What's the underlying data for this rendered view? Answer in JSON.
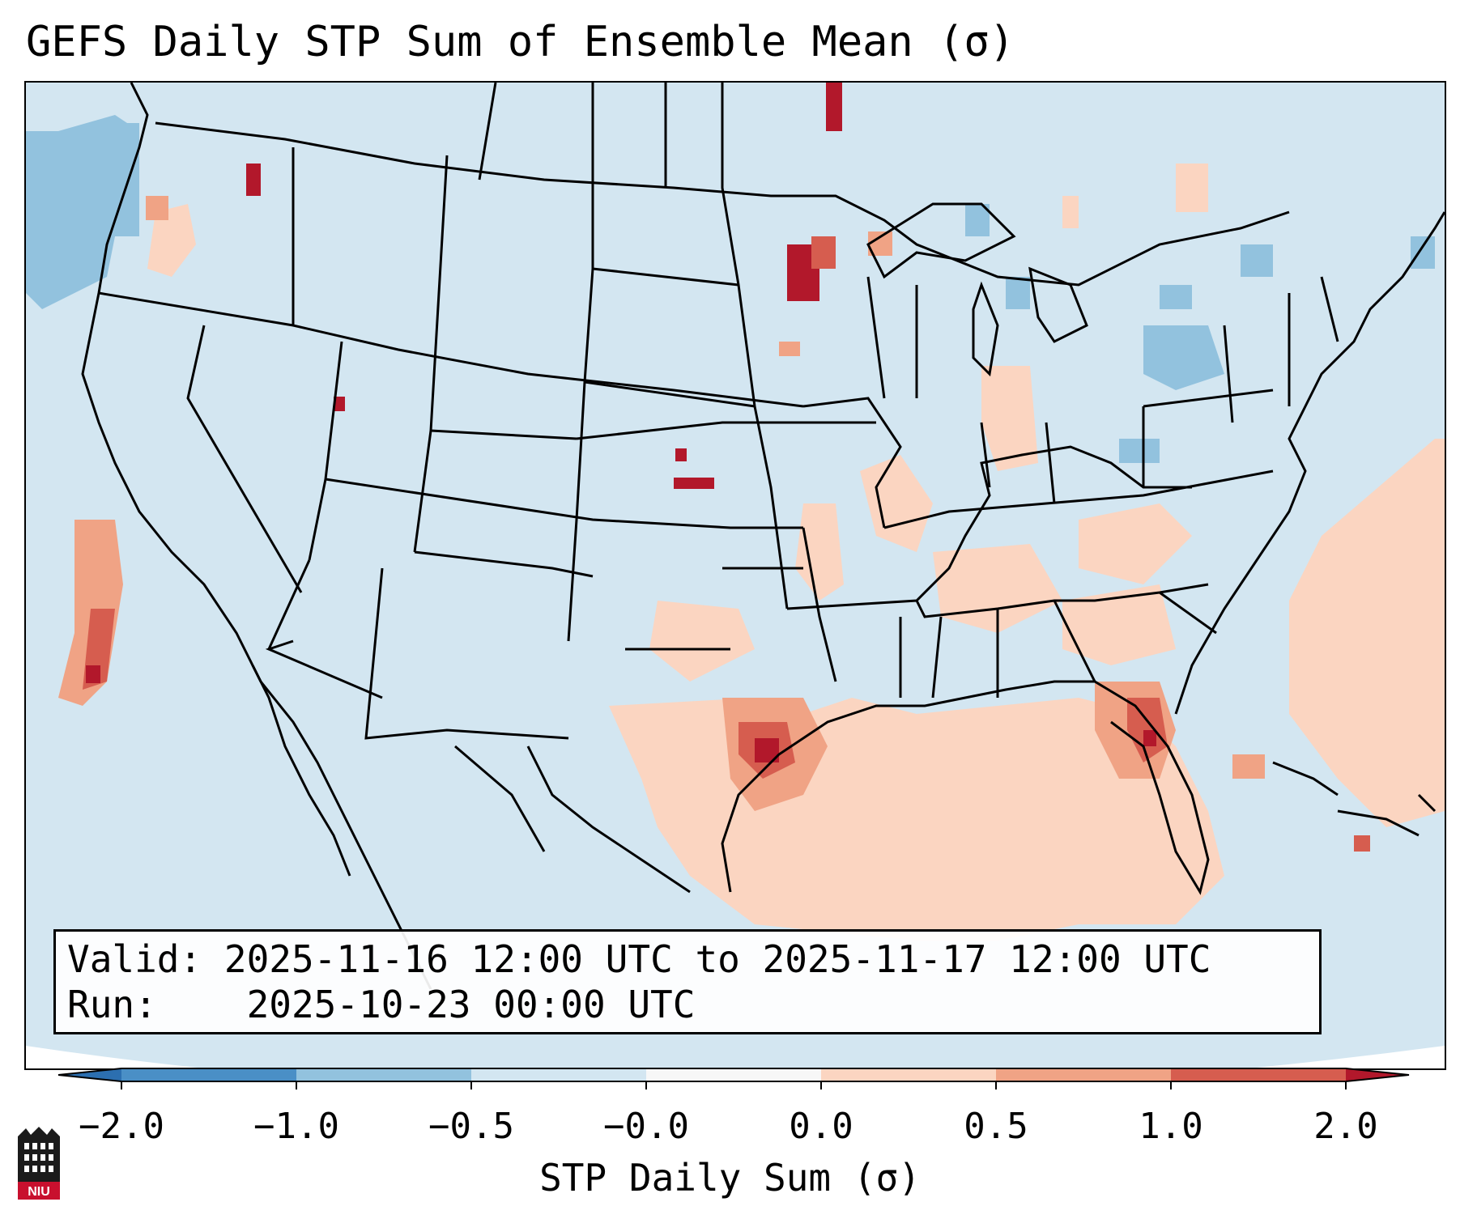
{
  "title": "GEFS Daily STP Sum of Ensemble Mean (σ)",
  "info": {
    "valid_label": "Valid:",
    "valid_value": "2025-11-16 12:00 UTC to 2025-11-17 12:00 UTC",
    "run_label": "Run:",
    "run_value": "2025-10-23 00:00 UTC"
  },
  "colorbar": {
    "label": "STP Daily Sum (σ)",
    "ticks": [
      "−2.0",
      "−1.0",
      "−0.5",
      "−0.0",
      "0.0",
      "0.5",
      "1.0",
      "2.0"
    ],
    "colors": [
      "#4a8fc6",
      "#92c2de",
      "#d3e6f1",
      "#f7f7f7",
      "#fbd5c1",
      "#f0a385",
      "#d65d4f"
    ],
    "under_color": "#2c6fb0",
    "over_color": "#b2182b"
  },
  "map": {
    "background_color": "#d3e6f1",
    "state_line_color": "#000000"
  },
  "logo": {
    "text": "NIU"
  }
}
